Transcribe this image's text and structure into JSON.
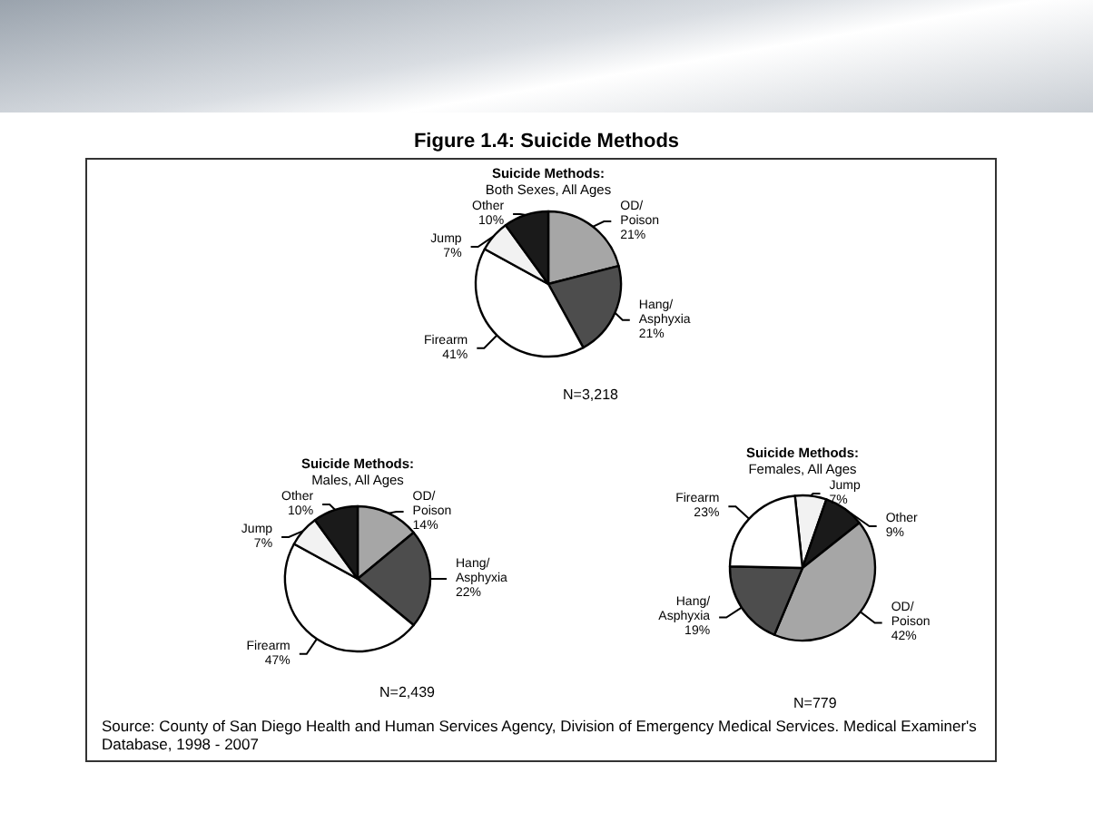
{
  "chart_data": [
    {
      "type": "other",
      "title": "Figure 1.4: Suicide Methods",
      "annotations": [
        "Source: County of San Diego Health and Human Services Agency, Division of Emergency Medical Services. Medical Examiner's Database, 1998 - 2007"
      ]
    },
    {
      "type": "pie",
      "title": "Suicide Methods:",
      "subtitle": "Both Sexes, All Ages",
      "categories": [
        "OD/Poison",
        "Hang/Asphyxia",
        "Firearm",
        "Jump",
        "Other"
      ],
      "values": [
        21,
        21,
        41,
        7,
        10
      ],
      "value_labels": [
        "21%",
        "21%",
        "41%",
        "7%",
        "10%"
      ],
      "colors": [
        "#a6a6a6",
        "#4d4d4d",
        "#ffffff",
        "#f2f2f2",
        "#1a1a1a"
      ],
      "legend": false,
      "annotations": [
        "N=3,218"
      ]
    },
    {
      "type": "pie",
      "title": "Suicide Methods:",
      "subtitle": "Males, All Ages",
      "categories": [
        "OD/Poison",
        "Hang/Asphyxia",
        "Firearm",
        "Jump",
        "Other"
      ],
      "values": [
        14,
        22,
        47,
        7,
        10
      ],
      "value_labels": [
        "14%",
        "22%",
        "47%",
        "7%",
        "10%"
      ],
      "colors": [
        "#a6a6a6",
        "#4d4d4d",
        "#ffffff",
        "#f2f2f2",
        "#1a1a1a"
      ],
      "legend": false,
      "annotations": [
        "N=2,439"
      ]
    },
    {
      "type": "pie",
      "title": "Suicide Methods:",
      "subtitle": "Females, All Ages",
      "categories": [
        "Jump",
        "Other",
        "OD/Poison",
        "Hang/Asphyxia",
        "Firearm"
      ],
      "values": [
        7,
        9,
        42,
        19,
        23
      ],
      "value_labels": [
        "7%",
        "9%",
        "42%",
        "19%",
        "23%"
      ],
      "colors": [
        "#f2f2f2",
        "#1a1a1a",
        "#a6a6a6",
        "#4d4d4d",
        "#ffffff"
      ],
      "legend": false,
      "annotations": [
        "N=779"
      ]
    }
  ]
}
